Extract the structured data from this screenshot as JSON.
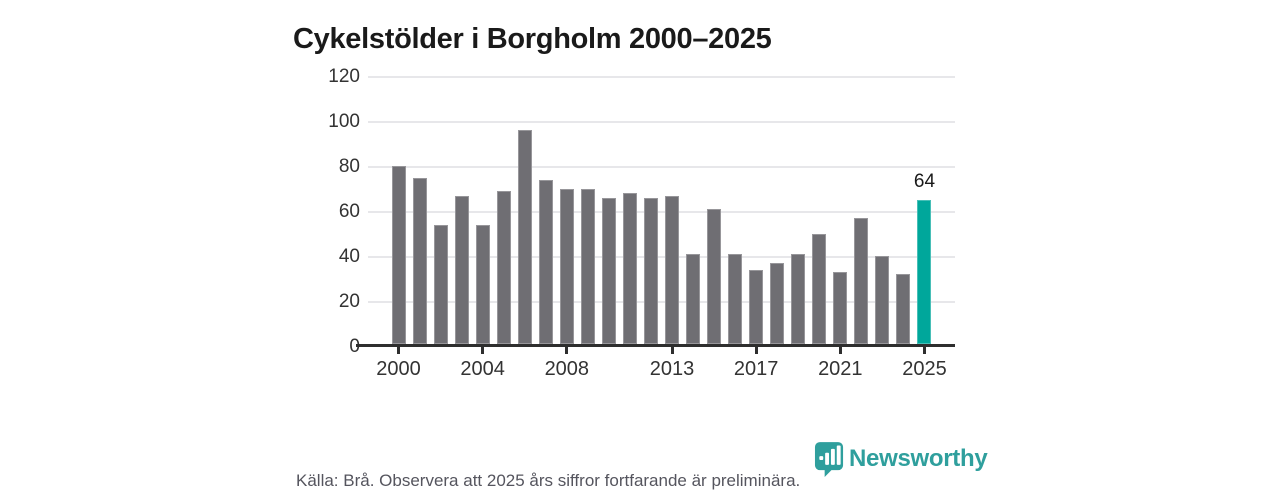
{
  "title": "Cykelstölder i Borgholm 2000–2025",
  "chart_data": {
    "type": "bar",
    "title": "Cykelstölder i Borgholm 2000–2025",
    "x": [
      2000,
      2001,
      2002,
      2003,
      2004,
      2005,
      2006,
      2007,
      2008,
      2009,
      2010,
      2011,
      2012,
      2013,
      2014,
      2015,
      2016,
      2017,
      2018,
      2019,
      2020,
      2021,
      2022,
      2023,
      2024,
      2025
    ],
    "values": [
      79,
      74,
      53,
      66,
      53,
      68,
      95,
      73,
      69,
      69,
      65,
      67,
      65,
      66,
      40,
      60,
      40,
      33,
      36,
      40,
      49,
      32,
      56,
      39,
      31,
      64
    ],
    "xlabel": "",
    "ylabel": "",
    "ylim": [
      0,
      120
    ],
    "ytick_step": 20,
    "ytick_labels": [
      "0",
      "20",
      "40",
      "60",
      "80",
      "100",
      "120"
    ],
    "xtick_labeled_years": [
      2000,
      2004,
      2008,
      2013,
      2017,
      2021,
      2025
    ],
    "grid": true,
    "legend": "none",
    "highlight_year": 2025,
    "highlight_value_label": "64",
    "colors": {
      "bar": "#6f6e73",
      "highlight_bar": "#00a79b",
      "gridline": "#e7e7ea",
      "axis_line": "#2e2e2e",
      "tick_label": "#333333"
    }
  },
  "footer": {
    "source_note": "Källa: Brå. Observera att 2025 års siffror fortfarande är preliminära."
  },
  "logo": {
    "text": "Newsworthy",
    "color": "#2f9f9d",
    "icon": "newsworthy-shield-bar-chart-icon"
  }
}
